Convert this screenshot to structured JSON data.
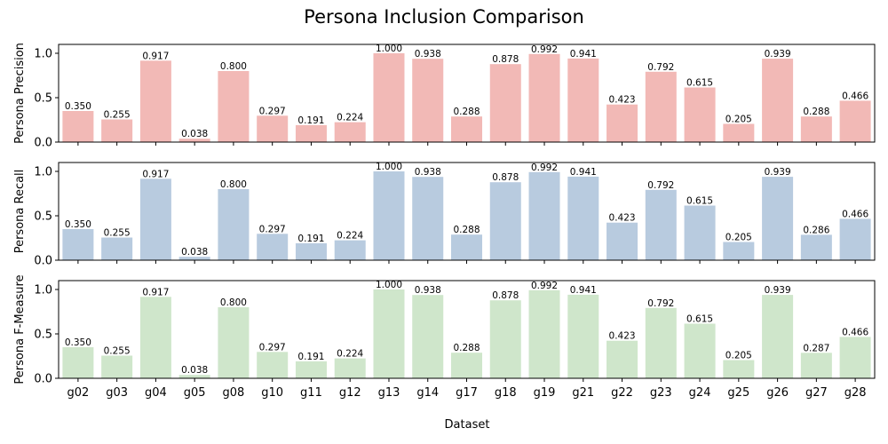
{
  "chart_data": {
    "type": "bar",
    "title": "Persona Inclusion Comparison",
    "xlabel": "Dataset",
    "categories": [
      "g02",
      "g03",
      "g04",
      "g05",
      "g08",
      "g10",
      "g11",
      "g12",
      "g13",
      "g14",
      "g17",
      "g18",
      "g19",
      "g21",
      "g22",
      "g23",
      "g24",
      "g25",
      "g26",
      "g27",
      "g28"
    ],
    "ylim": [
      0,
      1.1
    ],
    "yticks": [
      "0.0",
      "0.5",
      "1.0"
    ],
    "panels": [
      {
        "ylabel": "Persona Precision",
        "color": "#f2b9b6",
        "values": [
          0.35,
          0.255,
          0.917,
          0.038,
          0.8,
          0.297,
          0.191,
          0.224,
          1.0,
          0.938,
          0.288,
          0.878,
          0.992,
          0.941,
          0.423,
          0.792,
          0.615,
          0.205,
          0.939,
          0.288,
          0.466
        ],
        "labels": [
          "0.350",
          "0.255",
          "0.917",
          "0.038",
          "0.800",
          "0.297",
          "0.191",
          "0.224",
          "1.000",
          "0.938",
          "0.288",
          "0.878",
          "0.992",
          "0.941",
          "0.423",
          "0.792",
          "0.615",
          "0.205",
          "0.939",
          "0.288",
          "0.466"
        ]
      },
      {
        "ylabel": "Persona Recall",
        "color": "#b8cbdf",
        "values": [
          0.35,
          0.255,
          0.917,
          0.038,
          0.8,
          0.297,
          0.191,
          0.224,
          1.0,
          0.938,
          0.288,
          0.878,
          0.992,
          0.941,
          0.423,
          0.792,
          0.615,
          0.205,
          0.939,
          0.286,
          0.466
        ],
        "labels": [
          "0.350",
          "0.255",
          "0.917",
          "0.038",
          "0.800",
          "0.297",
          "0.191",
          "0.224",
          "1.000",
          "0.938",
          "0.288",
          "0.878",
          "0.992",
          "0.941",
          "0.423",
          "0.792",
          "0.615",
          "0.205",
          "0.939",
          "0.286",
          "0.466"
        ]
      },
      {
        "ylabel": "Persona F-Measure",
        "color": "#cfe6cb",
        "values": [
          0.35,
          0.255,
          0.917,
          0.038,
          0.8,
          0.297,
          0.191,
          0.224,
          1.0,
          0.938,
          0.288,
          0.878,
          0.992,
          0.941,
          0.423,
          0.792,
          0.615,
          0.205,
          0.939,
          0.287,
          0.466
        ],
        "labels": [
          "0.350",
          "0.255",
          "0.917",
          "0.038",
          "0.800",
          "0.297",
          "0.191",
          "0.224",
          "1.000",
          "0.938",
          "0.288",
          "0.878",
          "0.992",
          "0.941",
          "0.423",
          "0.792",
          "0.615",
          "0.205",
          "0.939",
          "0.287",
          "0.466"
        ]
      }
    ]
  }
}
